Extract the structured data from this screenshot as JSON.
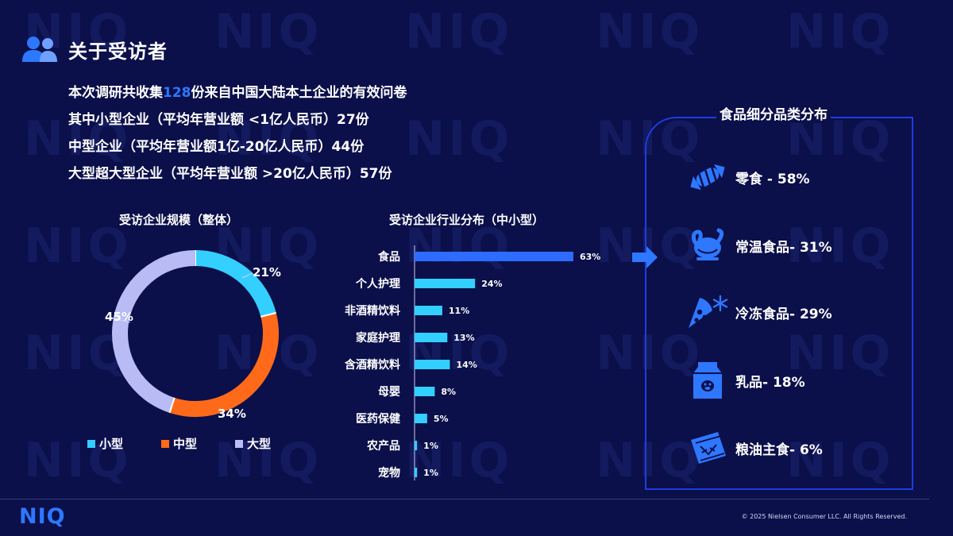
{
  "header": {
    "title": "关于受访者",
    "icon": "users-icon"
  },
  "intro": {
    "line1_pre": "本次调研共收集",
    "line1_num": "128",
    "line1_post": "份来自中国大陆本土企业的有效问卷",
    "line2": "其中小型企业（平均年营业额 <1亿人民币）27份",
    "line3": "中型企业（平均年营业额1亿-20亿人民币）44份",
    "line4": "大型超大型企业（平均年营业额 >20亿人民币）57份"
  },
  "colors": {
    "small": "#33cfff",
    "medium": "#ff6a1a",
    "large": "#b9bbf5",
    "bar": "#33cfff",
    "bar_top": "#2e6bff",
    "accent": "#2e77ff"
  },
  "chart_data": [
    {
      "type": "pie",
      "title": "受访企业规模（整体）",
      "categories": [
        "小型",
        "中型",
        "大型"
      ],
      "values": [
        21,
        34,
        45
      ],
      "labels": [
        "21%",
        "34%",
        "45%"
      ],
      "legend": "bottom"
    },
    {
      "type": "bar",
      "orientation": "horizontal",
      "title": "受访企业行业分布（中小型）",
      "categories": [
        "食品",
        "个人护理",
        "非酒精饮料",
        "家庭护理",
        "含酒精饮料",
        "母婴",
        "医药保健",
        "农产品",
        "宠物"
      ],
      "values": [
        63,
        24,
        11,
        13,
        14,
        8,
        5,
        1,
        1
      ],
      "labels": [
        "63%",
        "24%",
        "11%",
        "13%",
        "14%",
        "8%",
        "5%",
        "1%",
        "1%"
      ]
    }
  ],
  "categories_panel": {
    "title": "食品细分品类分布",
    "items": [
      {
        "label": "零食 - 58%",
        "icon": "candy-icon"
      },
      {
        "label": "常温食品- 31%",
        "icon": "roast-chicken-icon"
      },
      {
        "label": "冷冻食品- 29%",
        "icon": "pizza-snowflake-icon"
      },
      {
        "label": "乳品- 18%",
        "icon": "milk-carton-icon"
      },
      {
        "label": "粮油主食- 6%",
        "icon": "grain-bag-icon"
      }
    ]
  },
  "footer": {
    "logo": "NIQ",
    "copyright": "© 2025 Nielsen Consumer LLC. All Rights Reserved."
  }
}
